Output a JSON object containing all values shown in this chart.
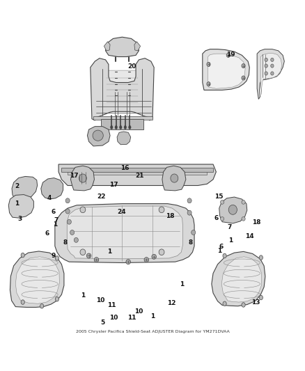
{
  "title": "2005 Chrysler Pacifica Shield-Seat ADJUSTER Diagram for YM271DVAA",
  "background_color": "#ffffff",
  "fig_width": 4.38,
  "fig_height": 5.33,
  "dpi": 100,
  "line_color": "#222222",
  "label_fontsize": 6.5,
  "label_color": "#111111"
}
